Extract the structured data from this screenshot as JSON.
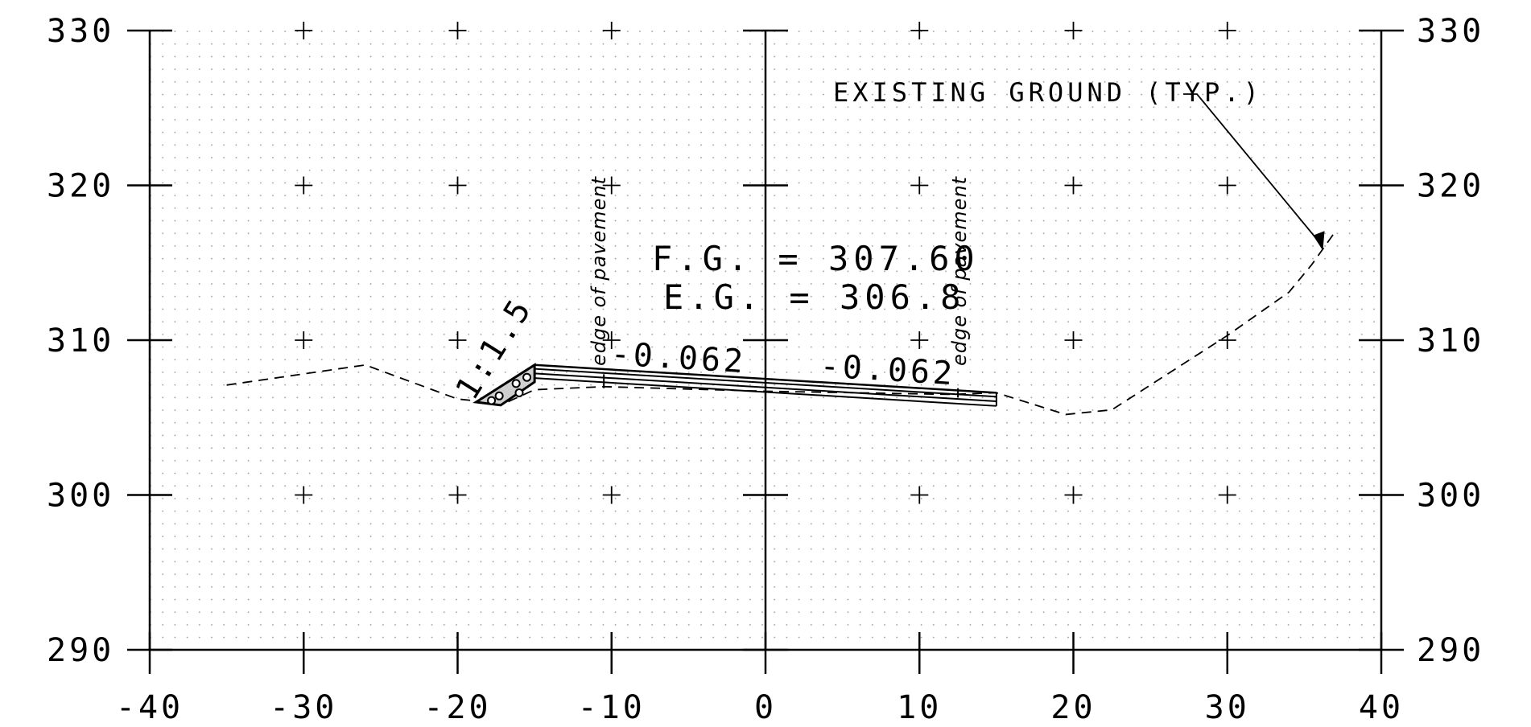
{
  "chart_data": {
    "type": "line",
    "title": "",
    "xlabel": "",
    "ylabel": "",
    "xlim": [
      -40,
      40
    ],
    "ylim": [
      290,
      330
    ],
    "x_ticks": [
      "-40",
      "-30",
      "-20",
      "-10",
      "0",
      "10",
      "20",
      "30",
      "40"
    ],
    "y_ticks": [
      "330",
      "320",
      "310",
      "300",
      "290"
    ],
    "grid": "dotted with cross markers",
    "series": [
      {
        "name": "",
        "style": "dashed",
        "points": [
          [
            -35,
            307.1
          ],
          [
            -26,
            308.4
          ],
          [
            -20,
            306.2
          ],
          [
            -17,
            305.9
          ],
          [
            -15,
            306.8
          ],
          [
            -10.5,
            307.0
          ],
          [
            0,
            306.7
          ],
          [
            12,
            306.5
          ],
          [
            15,
            306.6
          ],
          [
            19.5,
            305.2
          ],
          [
            22.5,
            305.5
          ],
          [
            30,
            310.3
          ],
          [
            34,
            313.1
          ],
          [
            35.5,
            314.9
          ],
          [
            37,
            317.0
          ]
        ]
      },
      {
        "name": "",
        "style": "solid",
        "points": [
          [
            -15,
            308.4
          ],
          [
            15,
            306.6
          ]
        ]
      }
    ],
    "annotations": {
      "existing_ground": "EXISTING GROUND (TYP.)",
      "fg": "F.G.  =  307.60",
      "eg": "E.G.  =  306.8",
      "slope_left": "-0.062",
      "slope_right": "-0.062",
      "edge_left": "edge of pavement",
      "edge_right": "edge of pavement",
      "side_slope": "1:1.5"
    }
  }
}
